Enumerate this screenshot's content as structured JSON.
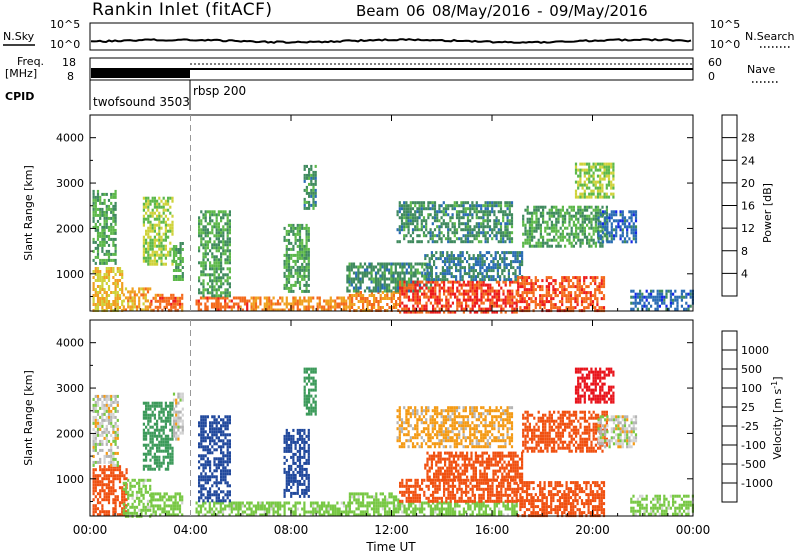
{
  "header": {
    "station": "Rankin Inlet (fitACF)",
    "beam": "Beam 06 08/May/2016 - 09/May/2016"
  },
  "noise_panel": {
    "left_label": "N.Sky",
    "right_label": "N.Search",
    "left_ticks": [
      "10^5",
      "10^0"
    ],
    "right_ticks": [
      "10^5",
      "10^0"
    ],
    "right_legend_style": "dotted"
  },
  "freq_panel": {
    "left_label_1": "Freq.",
    "left_label_2": "[MHz]",
    "right_label": "Nave",
    "left_ticks": [
      "18",
      "8"
    ],
    "right_ticks": [
      "60",
      "0"
    ],
    "right_legend_style": "dotted"
  },
  "cpid_panel": {
    "label": "CPID",
    "modes": [
      {
        "name": "twofsound",
        "id": "3503",
        "start_hour": 0,
        "end_hour": 4
      },
      {
        "name": "rbsp",
        "id": "200",
        "start_hour": 4,
        "end_hour": 24
      }
    ]
  },
  "colors": {
    "power_scale": [
      "#1428e6",
      "#2a6cb4",
      "#3f8a5e",
      "#5cb84a",
      "#cfd23a",
      "#f0a020",
      "#f46a1c",
      "#ee1c1c"
    ],
    "velocity_scale": [
      "#e8141c",
      "#f05010",
      "#f49a14",
      "#b4b4b4",
      "#d2d2d2",
      "#78c844",
      "#3c9a5a",
      "#20489c",
      "#2038b4"
    ]
  },
  "chart_data": [
    {
      "type": "heatmap",
      "title": "",
      "xlabel": "Time UT",
      "ylabel": "Slant Range [km]",
      "x_ticks": [
        "00:00",
        "04:00",
        "08:00",
        "12:00",
        "16:00",
        "20:00",
        "00:00"
      ],
      "x_tick_hours": [
        0,
        4,
        8,
        12,
        16,
        20,
        24
      ],
      "y_ticks": [
        "1000",
        "2000",
        "3000",
        "4000"
      ],
      "y_tick_values": [
        1000,
        2000,
        3000,
        4000
      ],
      "ylim": [
        180,
        4500
      ],
      "xlim_hours": [
        0,
        24
      ],
      "colorbar_label": "Power [dB]",
      "colorbar_ticks": [
        "4",
        "8",
        "12",
        "16",
        "20",
        "24",
        "28"
      ],
      "colorbar_min": 0,
      "colorbar_max": 32,
      "marker_hour": 4,
      "echo_regions": [
        {
          "t0": 0.1,
          "t1": 1.3,
          "r0": 200,
          "r1": 1150,
          "v": 20
        },
        {
          "t0": 0.1,
          "t1": 1.0,
          "r0": 1200,
          "r1": 2850,
          "v": 12
        },
        {
          "t0": 1.3,
          "t1": 2.4,
          "r0": 200,
          "r1": 700,
          "v": 22
        },
        {
          "t0": 2.1,
          "t1": 3.3,
          "r0": 1200,
          "r1": 2700,
          "v": 16
        },
        {
          "t0": 2.4,
          "t1": 3.7,
          "r0": 180,
          "r1": 560,
          "v": 26
        },
        {
          "t0": 3.3,
          "t1": 3.7,
          "r0": 900,
          "r1": 1700,
          "v": 12
        },
        {
          "t0": 4.2,
          "t1": 6.3,
          "r0": 180,
          "r1": 500,
          "v": 26
        },
        {
          "t0": 4.3,
          "t1": 5.6,
          "r0": 500,
          "r1": 2400,
          "v": 12
        },
        {
          "t0": 6.3,
          "t1": 10.3,
          "r0": 180,
          "r1": 500,
          "v": 24
        },
        {
          "t0": 7.7,
          "t1": 8.7,
          "r0": 600,
          "r1": 2100,
          "v": 12
        },
        {
          "t0": 8.5,
          "t1": 9.0,
          "r0": 2400,
          "r1": 3400,
          "v": 10
        },
        {
          "t0": 10.3,
          "t1": 12.3,
          "r0": 180,
          "r1": 620,
          "v": 24
        },
        {
          "t0": 10.2,
          "t1": 13.6,
          "r0": 650,
          "r1": 1250,
          "v": 10
        },
        {
          "t0": 12.3,
          "t1": 17.0,
          "r0": 180,
          "r1": 850,
          "v": 28
        },
        {
          "t0": 13.3,
          "t1": 17.2,
          "r0": 850,
          "r1": 1500,
          "v": 8
        },
        {
          "t0": 12.2,
          "t1": 16.8,
          "r0": 1700,
          "r1": 2600,
          "v": 10
        },
        {
          "t0": 17.0,
          "t1": 20.5,
          "r0": 200,
          "r1": 950,
          "v": 27
        },
        {
          "t0": 17.2,
          "t1": 20.6,
          "r0": 1600,
          "r1": 2500,
          "v": 12
        },
        {
          "t0": 20.2,
          "t1": 21.7,
          "r0": 1700,
          "r1": 2400,
          "v": 6
        },
        {
          "t0": 19.3,
          "t1": 20.8,
          "r0": 2700,
          "r1": 3450,
          "v": 16
        },
        {
          "t0": 21.5,
          "t1": 24.0,
          "r0": 200,
          "r1": 650,
          "v": 6
        }
      ]
    },
    {
      "type": "heatmap",
      "title": "",
      "xlabel": "Time UT",
      "ylabel": "Slant Range [km]",
      "x_ticks": [
        "00:00",
        "04:00",
        "08:00",
        "12:00",
        "16:00",
        "20:00",
        "00:00"
      ],
      "x_tick_hours": [
        0,
        4,
        8,
        12,
        16,
        20,
        24
      ],
      "y_ticks": [
        "1000",
        "2000",
        "3000",
        "4000"
      ],
      "y_tick_values": [
        1000,
        2000,
        3000,
        4000
      ],
      "ylim": [
        180,
        4500
      ],
      "xlim_hours": [
        0,
        24
      ],
      "colorbar_label": "Velocity [m s^-1]",
      "colorbar_ticks": [
        "1000",
        "500",
        "100",
        "25",
        "-25",
        "-100",
        "-500",
        "-1000"
      ],
      "marker_hour": 4,
      "echo_regions": [
        {
          "t0": 0.1,
          "t1": 1.5,
          "r0": 200,
          "r1": 1300,
          "v": -200
        },
        {
          "t0": 0.1,
          "t1": 1.1,
          "r0": 1300,
          "r1": 2850,
          "v": 5
        },
        {
          "t0": 1.3,
          "t1": 2.4,
          "r0": 200,
          "r1": 1000,
          "v": 60
        },
        {
          "t0": 2.1,
          "t1": 3.3,
          "r0": 1200,
          "r1": 2700,
          "v": 400
        },
        {
          "t0": 2.4,
          "t1": 3.7,
          "r0": 200,
          "r1": 700,
          "v": 60
        },
        {
          "t0": 3.3,
          "t1": 3.7,
          "r0": 1900,
          "r1": 2900,
          "v": 5
        },
        {
          "t0": 4.2,
          "t1": 6.3,
          "r0": 200,
          "r1": 500,
          "v": 60
        },
        {
          "t0": 4.3,
          "t1": 5.6,
          "r0": 500,
          "r1": 2400,
          "v": 600
        },
        {
          "t0": 6.3,
          "t1": 10.3,
          "r0": 200,
          "r1": 500,
          "v": 60
        },
        {
          "t0": 7.7,
          "t1": 8.7,
          "r0": 600,
          "r1": 2100,
          "v": 600
        },
        {
          "t0": 8.5,
          "t1": 9.0,
          "r0": 2400,
          "r1": 3450,
          "v": 150
        },
        {
          "t0": 10.3,
          "t1": 12.3,
          "r0": 200,
          "r1": 700,
          "v": 60
        },
        {
          "t0": 12.3,
          "t1": 17.0,
          "r0": 200,
          "r1": 500,
          "v": 60
        },
        {
          "t0": 12.3,
          "t1": 17.0,
          "r0": 500,
          "r1": 1000,
          "v": -200
        },
        {
          "t0": 13.3,
          "t1": 17.2,
          "r0": 1000,
          "r1": 1600,
          "v": -200
        },
        {
          "t0": 12.2,
          "t1": 16.8,
          "r0": 1700,
          "r1": 2600,
          "v": -50
        },
        {
          "t0": 17.0,
          "t1": 20.5,
          "r0": 200,
          "r1": 950,
          "v": -200
        },
        {
          "t0": 17.2,
          "t1": 20.6,
          "r0": 1600,
          "r1": 2500,
          "v": -200
        },
        {
          "t0": 20.2,
          "t1": 21.7,
          "r0": 1700,
          "r1": 2400,
          "v": 5
        },
        {
          "t0": 19.3,
          "t1": 20.8,
          "r0": 2700,
          "r1": 3450,
          "v": -600
        },
        {
          "t0": 21.5,
          "t1": 24.0,
          "r0": 200,
          "r1": 650,
          "v": 60
        }
      ]
    }
  ]
}
